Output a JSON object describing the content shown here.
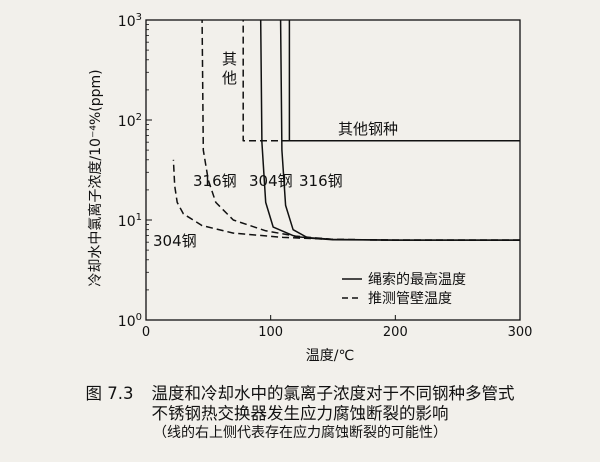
{
  "figure": {
    "y_axis_label": "冷却水中氯离子浓度/10⁻⁴%(ppm)",
    "x_axis_label": "温度/℃",
    "x_ticks": [
      "0",
      "100",
      "200",
      "300"
    ],
    "y_ticks": [
      {
        "base": "10",
        "exp": "0",
        "value": 1
      },
      {
        "base": "10",
        "exp": "1",
        "value": 10
      },
      {
        "base": "10",
        "exp": "2",
        "value": 100
      },
      {
        "base": "10",
        "exp": "3",
        "value": 1000
      }
    ],
    "region_labels": {
      "other_short": "其他",
      "other_steel": "其他钢种",
      "ss316_left": "316钢",
      "ss304_top": "304钢",
      "ss316_right": "316钢",
      "ss304_bottom": "304钢"
    },
    "legend": {
      "solid": "绳索的最高温度",
      "dashed": "推测管壁温度"
    }
  },
  "caption": {
    "number": "图 7.3",
    "line1": "温度和冷却水中的氯离子浓度对于不同钢种多管式",
    "line2": "不锈钢热交换器发生应力腐蚀断裂的影响",
    "line3": "（线的右上侧代表存在应力腐蚀断裂的可能性）"
  },
  "chart_data": {
    "type": "line",
    "x_scale": "linear",
    "y_scale": "log",
    "xlim": [
      0,
      300
    ],
    "ylim": [
      1,
      1000
    ],
    "xlabel": "温度/℃",
    "ylabel": "冷却水中氯离子浓度/10⁻⁴%(ppm)",
    "legend_position": "bottom-right",
    "series": [
      {
        "name": "绳索的最高温度",
        "style": "solid",
        "label": "其他钢种",
        "points": [
          [
            300,
            62
          ],
          [
            115,
            62
          ],
          [
            115,
            1000
          ]
        ]
      },
      {
        "name": "绳索的最高温度",
        "style": "solid",
        "label": "316钢",
        "points": [
          [
            300,
            6.3
          ],
          [
            200,
            6.3
          ],
          [
            150,
            6.35
          ],
          [
            130,
            6.6
          ],
          [
            118,
            8
          ],
          [
            112,
            14
          ],
          [
            109,
            50
          ],
          [
            108,
            1000
          ]
        ]
      },
      {
        "name": "绳索的最高温度",
        "style": "solid",
        "label": "304钢",
        "points": [
          [
            300,
            6.3
          ],
          [
            200,
            6.3
          ],
          [
            150,
            6.4
          ],
          [
            120,
            6.8
          ],
          [
            102,
            8.5
          ],
          [
            96,
            15
          ],
          [
            93,
            60
          ],
          [
            92,
            1000
          ]
        ]
      },
      {
        "name": "推测管壁温度",
        "style": "dashed",
        "label": "其他",
        "points": [
          [
            300,
            62
          ],
          [
            78,
            62
          ],
          [
            78,
            1000
          ]
        ]
      },
      {
        "name": "推测管壁温度",
        "style": "dashed",
        "label": "316钢",
        "points": [
          [
            300,
            6.3
          ],
          [
            200,
            6.3
          ],
          [
            150,
            6.4
          ],
          [
            120,
            6.9
          ],
          [
            96,
            7.8
          ],
          [
            70,
            10
          ],
          [
            56,
            15
          ],
          [
            50,
            25
          ],
          [
            46,
            50
          ],
          [
            45,
            1000
          ]
        ]
      },
      {
        "name": "推测管壁温度",
        "style": "dashed",
        "label": "304钢",
        "points": [
          [
            300,
            6.3
          ],
          [
            200,
            6.3
          ],
          [
            150,
            6.4
          ],
          [
            110,
            6.7
          ],
          [
            70,
            7.4
          ],
          [
            45,
            8.8
          ],
          [
            30,
            11.5
          ],
          [
            25,
            15
          ],
          [
            23,
            22
          ],
          [
            22,
            40
          ]
        ]
      }
    ]
  }
}
